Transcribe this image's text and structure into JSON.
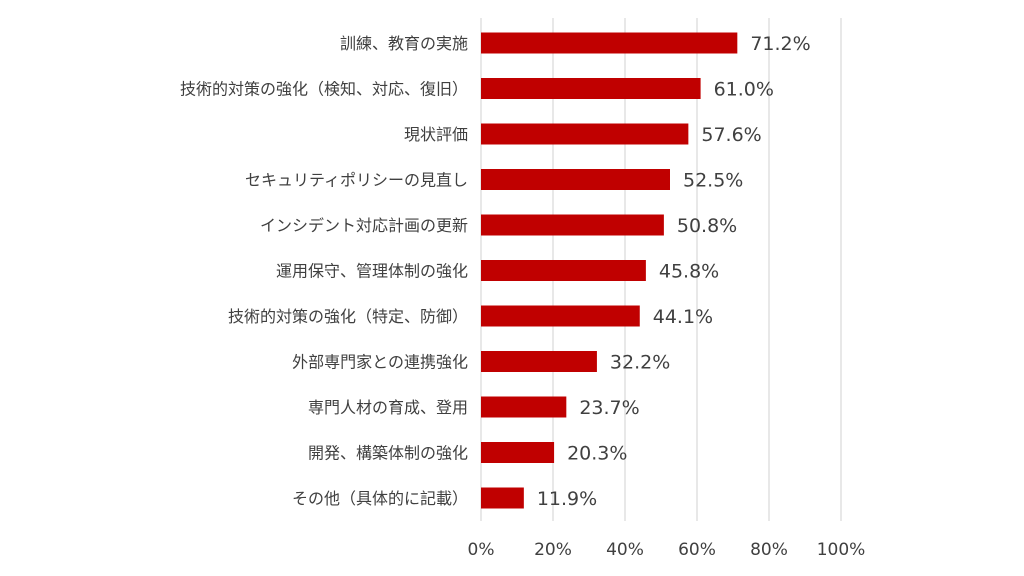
{
  "chart_data": {
    "type": "bar",
    "orientation": "horizontal",
    "title": "",
    "xlabel": "",
    "ylabel": "",
    "xlim": [
      0,
      100
    ],
    "grid": true,
    "bar_color": "#C00000",
    "categories": [
      "訓練、教育の実施",
      "技術的対策の強化（検知、対応、復旧）",
      "現状評価",
      "セキュリティポリシーの見直し",
      "インシデント対応計画の更新",
      "運用保守、管理体制の強化",
      "技術的対策の強化（特定、防御）",
      "外部専門家との連携強化",
      "専門人材の育成、登用",
      "開発、構築体制の強化",
      "その他（具体的に記載）"
    ],
    "values": [
      71.2,
      61.0,
      57.6,
      52.5,
      50.8,
      45.8,
      44.1,
      32.2,
      23.7,
      20.3,
      11.9
    ],
    "value_labels": [
      "71.2%",
      "61.0%",
      "57.6%",
      "52.5%",
      "50.8%",
      "45.8%",
      "44.1%",
      "32.2%",
      "23.7%",
      "20.3%",
      "11.9%"
    ],
    "ticks": [
      0,
      20,
      40,
      60,
      80,
      100
    ],
    "tick_labels": [
      "0%",
      "20%",
      "40%",
      "60%",
      "80%",
      "100%"
    ]
  }
}
